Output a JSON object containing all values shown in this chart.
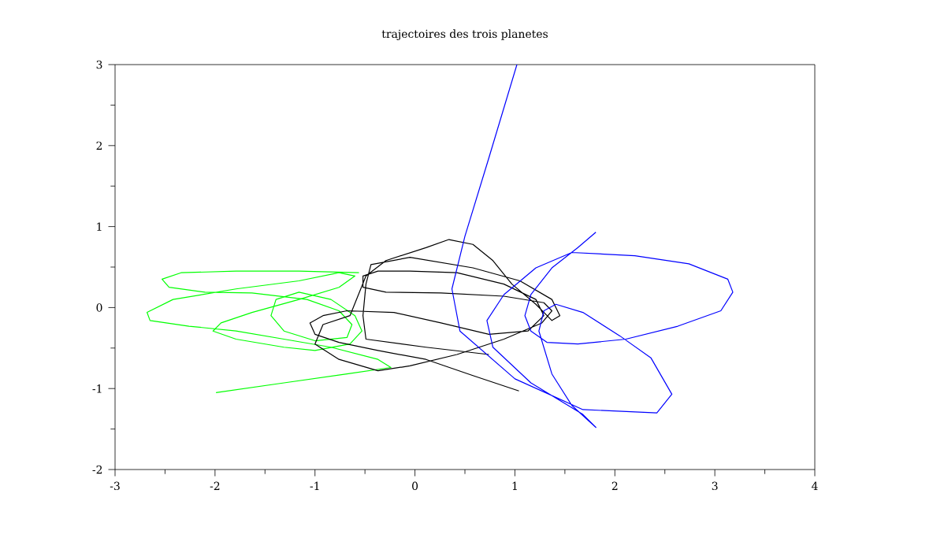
{
  "chart_data": {
    "type": "line",
    "title": "trajectoires des trois planetes",
    "xlim": [
      -3,
      4
    ],
    "ylim": [
      -2,
      3
    ],
    "xticks": [
      -3,
      -2,
      -1,
      0,
      1,
      2,
      3,
      4
    ],
    "yticks": [
      -2,
      -1,
      0,
      1,
      2,
      3
    ],
    "series": [
      {
        "color": "#00ff00",
        "x": [
          -1.99,
          -1.31,
          -0.68,
          -0.24,
          -0.37,
          -0.84,
          -1.31,
          -1.79,
          -2.26,
          -2.65,
          -2.68,
          -2.42,
          -1.79,
          -1.16,
          -0.76,
          -0.6,
          -0.76,
          -1.16,
          -1.63,
          -1.94,
          -2.02,
          -1.79,
          -1.31,
          -1.0,
          -0.65,
          -0.53,
          -0.6,
          -0.84,
          -1.16,
          -1.39,
          -1.44,
          -1.31,
          -1.0,
          -0.68,
          -0.63,
          -0.76,
          -1.08,
          -1.63,
          -2.1,
          -2.46,
          -2.53,
          -2.34,
          -1.79,
          -1.16,
          -0.56
        ],
        "values": [
          -1.05,
          -0.93,
          -0.82,
          -0.74,
          -0.64,
          -0.49,
          -0.39,
          -0.29,
          -0.23,
          -0.16,
          -0.06,
          0.1,
          0.23,
          0.33,
          0.43,
          0.39,
          0.25,
          0.1,
          -0.06,
          -0.19,
          -0.29,
          -0.39,
          -0.49,
          -0.53,
          -0.45,
          -0.29,
          -0.1,
          0.1,
          0.19,
          0.1,
          -0.1,
          -0.29,
          -0.41,
          -0.37,
          -0.21,
          -0.04,
          0.1,
          0.18,
          0.19,
          0.25,
          0.35,
          0.43,
          0.45,
          0.45,
          0.43
        ]
      },
      {
        "color": "#000000",
        "x": [
          1.04,
          0.58,
          0.11,
          -0.37,
          -0.76,
          -1.0,
          -1.05,
          -0.92,
          -0.68,
          -0.21,
          0.26,
          0.74,
          1.13,
          1.29,
          1.21,
          0.89,
          0.42,
          -0.05,
          -0.37,
          -0.52,
          -0.52,
          -0.29,
          0.26,
          0.89,
          1.29,
          1.37,
          1.27,
          0.89,
          0.42,
          -0.05,
          -0.37,
          -0.76,
          -1.0,
          -0.92,
          -0.65,
          -0.49,
          -0.29,
          0.11,
          0.34,
          0.58,
          0.78,
          0.97,
          1.21,
          1.37,
          1.45,
          1.37,
          1.05,
          0.58,
          -0.05,
          -0.44,
          -0.49,
          -0.52,
          -0.49,
          0.11,
          0.74
        ],
        "values": [
          -1.03,
          -0.84,
          -0.64,
          -0.53,
          -0.43,
          -0.33,
          -0.19,
          -0.1,
          -0.04,
          -0.06,
          -0.19,
          -0.33,
          -0.29,
          -0.1,
          0.1,
          0.29,
          0.43,
          0.45,
          0.45,
          0.39,
          0.25,
          0.19,
          0.18,
          0.14,
          0.06,
          -0.04,
          -0.19,
          -0.39,
          -0.58,
          -0.72,
          -0.78,
          -0.64,
          -0.45,
          -0.21,
          -0.1,
          0.39,
          0.58,
          0.74,
          0.84,
          0.78,
          0.58,
          0.29,
          0.04,
          -0.16,
          -0.1,
          0.1,
          0.33,
          0.49,
          0.62,
          0.53,
          0.29,
          -0.1,
          -0.39,
          -0.49,
          -0.58
        ]
      },
      {
        "color": "#0000ff",
        "x": [
          1.02,
          0.74,
          0.5,
          0.37,
          0.45,
          1.0,
          1.68,
          2.42,
          2.57,
          2.36,
          2.05,
          1.68,
          1.41,
          1.29,
          1.24,
          1.37,
          1.57,
          1.81,
          1.68,
          1.16,
          0.78,
          0.72,
          0.89,
          1.21,
          1.57,
          2.2,
          2.74,
          3.13,
          3.18,
          3.06,
          2.63,
          2.11,
          1.63,
          1.32,
          1.16,
          1.1,
          1.16,
          1.37,
          1.63,
          1.81
        ],
        "values": [
          3.0,
          1.85,
          0.88,
          0.23,
          -0.29,
          -0.88,
          -1.26,
          -1.3,
          -1.07,
          -0.62,
          -0.35,
          -0.06,
          0.04,
          -0.04,
          -0.29,
          -0.82,
          -1.21,
          -1.48,
          -1.32,
          -0.93,
          -0.49,
          -0.16,
          0.16,
          0.49,
          0.68,
          0.64,
          0.54,
          0.35,
          0.19,
          -0.04,
          -0.23,
          -0.39,
          -0.45,
          -0.43,
          -0.29,
          -0.1,
          0.16,
          0.49,
          0.74,
          0.93
        ]
      }
    ]
  }
}
